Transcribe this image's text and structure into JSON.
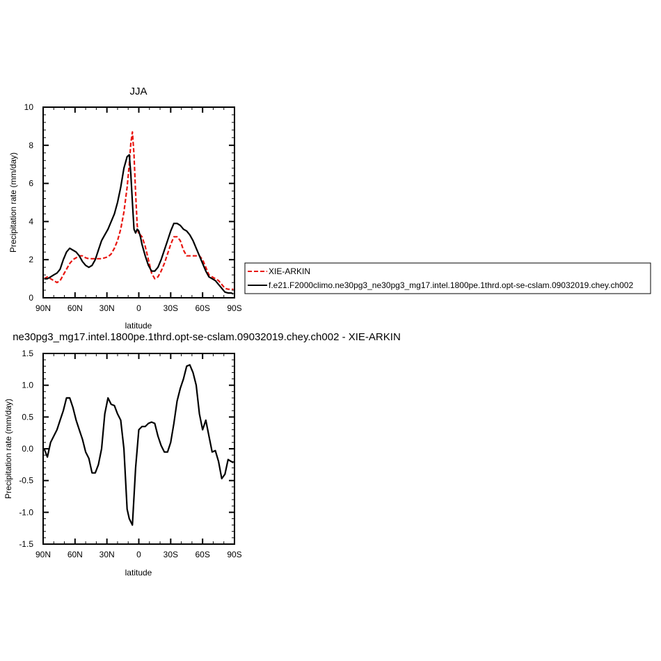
{
  "chart_data": [
    {
      "type": "line",
      "title": "JJA",
      "xlabel": "latitude",
      "ylabel": "Precipitation rate (mm/day)",
      "xlim": [
        90,
        -90
      ],
      "ylim": [
        0,
        10
      ],
      "x_ticks": [
        90,
        60,
        30,
        0,
        -30,
        -60,
        -90
      ],
      "x_tick_labels": [
        "90N",
        "60N",
        "30N",
        "0",
        "30S",
        "60S",
        "90S"
      ],
      "y_ticks": [
        0,
        2,
        4,
        6,
        8,
        10
      ],
      "y_tick_labels": [
        "0",
        "2",
        "4",
        "6",
        "8",
        "10"
      ],
      "legend_position": "right",
      "series": [
        {
          "name": "XIE-ARKIN",
          "color": "#e8150f",
          "dash": "dashed",
          "x": [
            89,
            86,
            83,
            80,
            77,
            74,
            71,
            68,
            65,
            62,
            59,
            56,
            53,
            50,
            47,
            44,
            41,
            38,
            35,
            32,
            29,
            26,
            23,
            20,
            17,
            14,
            11,
            9,
            7.5,
            6,
            4.5,
            3,
            1.5,
            0,
            -1.5,
            -3,
            -6,
            -9,
            -12,
            -15,
            -18,
            -21,
            -24,
            -27,
            -30,
            -33,
            -36,
            -39,
            -42,
            -45,
            -48,
            -51,
            -54,
            -57,
            -60,
            -63,
            -66,
            -69,
            -72,
            -75,
            -78,
            -81,
            -84,
            -87,
            -89
          ],
          "values": [
            1.0,
            1.1,
            1.0,
            0.9,
            0.8,
            0.9,
            1.2,
            1.5,
            1.8,
            2.0,
            2.1,
            2.2,
            2.2,
            2.1,
            2.05,
            2.05,
            2.05,
            2.05,
            2.05,
            2.1,
            2.15,
            2.3,
            2.6,
            3.0,
            3.6,
            4.5,
            5.8,
            7.0,
            8.1,
            8.7,
            7.5,
            5.5,
            3.8,
            3.3,
            3.3,
            3.2,
            2.7,
            2.0,
            1.3,
            1.0,
            1.1,
            1.4,
            1.8,
            2.3,
            2.8,
            3.2,
            3.2,
            3.0,
            2.5,
            2.2,
            2.2,
            2.2,
            2.2,
            2.2,
            2.0,
            1.6,
            1.2,
            1.1,
            1.0,
            0.9,
            0.7,
            0.5,
            0.45,
            0.45,
            0.45
          ]
        },
        {
          "name": "f.e21.F2000climo.ne30pg3_ne30pg3_mg17.intel.1800pe.1thrd.opt-se-cslam.09032019.chey.ch002",
          "color": "#000000",
          "dash": "solid",
          "x": [
            89,
            86,
            83,
            80,
            77,
            74,
            71,
            68,
            65,
            62,
            59,
            56,
            53,
            50,
            47,
            44,
            41,
            38,
            35,
            32,
            29,
            26,
            23,
            20,
            17,
            14,
            11,
            9,
            7.5,
            6,
            4.5,
            3,
            1.5,
            0,
            -1.5,
            -3,
            -6,
            -9,
            -12,
            -15,
            -18,
            -21,
            -24,
            -27,
            -30,
            -33,
            -36,
            -39,
            -42,
            -45,
            -48,
            -51,
            -54,
            -57,
            -60,
            -63,
            -66,
            -69,
            -72,
            -75,
            -78,
            -81,
            -84,
            -87,
            -89
          ],
          "values": [
            1.0,
            1.0,
            1.1,
            1.2,
            1.3,
            1.5,
            2.0,
            2.4,
            2.6,
            2.5,
            2.4,
            2.2,
            1.9,
            1.7,
            1.6,
            1.7,
            2.0,
            2.5,
            3.0,
            3.3,
            3.6,
            4.0,
            4.4,
            5.0,
            5.8,
            6.8,
            7.4,
            7.5,
            6.5,
            5.0,
            3.6,
            3.4,
            3.6,
            3.5,
            3.2,
            2.8,
            2.2,
            1.7,
            1.4,
            1.4,
            1.6,
            2.0,
            2.5,
            3.0,
            3.5,
            3.9,
            3.9,
            3.8,
            3.6,
            3.5,
            3.3,
            3.0,
            2.6,
            2.2,
            1.8,
            1.4,
            1.1,
            1.0,
            0.9,
            0.7,
            0.5,
            0.3,
            0.25,
            0.25,
            0.2
          ]
        }
      ]
    },
    {
      "type": "line",
      "title": "ne30pg3_mg17.intel.1800pe.1thrd.opt-se-cslam.09032019.chey.ch002 - XIE-ARKIN",
      "xlabel": "latitude",
      "ylabel": "Precipitation rate (mm/day)",
      "xlim": [
        90,
        -90
      ],
      "ylim": [
        -1.5,
        1.5
      ],
      "x_ticks": [
        90,
        60,
        30,
        0,
        -30,
        -60,
        -90
      ],
      "x_tick_labels": [
        "90N",
        "60N",
        "30N",
        "0",
        "30S",
        "60S",
        "90S"
      ],
      "y_ticks": [
        1.5,
        1.0,
        0.5,
        0.0,
        -0.5,
        -1.0,
        -1.5
      ],
      "y_tick_labels": [
        "1.5",
        "1.0",
        "0.5",
        "0.0",
        "-0.5",
        "-1.0",
        "-1.5"
      ],
      "series": [
        {
          "color": "#000000",
          "dash": "solid",
          "x": [
            89,
            86,
            83,
            80,
            77,
            74,
            71,
            68,
            65,
            62,
            59,
            56,
            53,
            50,
            47,
            44,
            41,
            38,
            35,
            32,
            29,
            26,
            23,
            20,
            17,
            14,
            11,
            9,
            6,
            3,
            0,
            -3,
            -6,
            -9,
            -12,
            -15,
            -18,
            -21,
            -24,
            -27,
            -30,
            -33,
            -36,
            -39,
            -42,
            -45,
            -48,
            -51,
            -54,
            -57,
            -60,
            -63,
            -66,
            -69,
            -72,
            -75,
            -78,
            -81,
            -84,
            -87,
            -89
          ],
          "values": [
            0.0,
            -0.13,
            0.1,
            0.2,
            0.3,
            0.45,
            0.6,
            0.8,
            0.8,
            0.65,
            0.45,
            0.3,
            0.15,
            -0.05,
            -0.15,
            -0.38,
            -0.38,
            -0.25,
            0.0,
            0.55,
            0.8,
            0.7,
            0.68,
            0.55,
            0.45,
            0.0,
            -0.95,
            -1.1,
            -1.2,
            -0.3,
            0.3,
            0.35,
            0.35,
            0.4,
            0.42,
            0.4,
            0.2,
            0.05,
            -0.05,
            -0.05,
            0.1,
            0.4,
            0.75,
            0.95,
            1.1,
            1.3,
            1.32,
            1.2,
            1.0,
            0.55,
            0.3,
            0.45,
            0.2,
            -0.05,
            -0.03,
            -0.2,
            -0.47,
            -0.4,
            -0.17,
            -0.2,
            -0.22
          ]
        }
      ]
    }
  ]
}
